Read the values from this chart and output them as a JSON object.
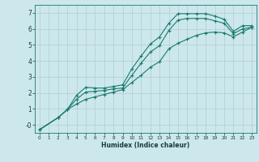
{
  "title": "",
  "xlabel": "Humidex (Indice chaleur)",
  "bg_color": "#cce8ec",
  "grid_color": "#b0cdd0",
  "line_color": "#1a7a6e",
  "xlim": [
    -0.5,
    23.5
  ],
  "ylim": [
    -0.5,
    7.5
  ],
  "xticks": [
    0,
    1,
    2,
    3,
    4,
    5,
    6,
    7,
    8,
    9,
    10,
    11,
    12,
    13,
    14,
    15,
    16,
    17,
    18,
    19,
    20,
    21,
    22,
    23
  ],
  "yticks": [
    0,
    1,
    2,
    3,
    4,
    5,
    6,
    7
  ],
  "line1_x": [
    0,
    2,
    3,
    4,
    5,
    6,
    7,
    8,
    9,
    10,
    11,
    12,
    13,
    14,
    15,
    16,
    17,
    18,
    19,
    20,
    21,
    22,
    23
  ],
  "line1_y": [
    -0.3,
    0.45,
    0.95,
    1.85,
    2.35,
    2.3,
    2.3,
    2.4,
    2.5,
    3.5,
    4.3,
    5.05,
    5.5,
    6.35,
    6.95,
    6.95,
    6.95,
    6.95,
    6.8,
    6.6,
    5.85,
    6.2,
    6.2
  ],
  "line2_x": [
    0,
    2,
    3,
    4,
    5,
    6,
    7,
    8,
    9,
    10,
    11,
    12,
    13,
    14,
    15,
    16,
    17,
    18,
    19,
    20,
    21,
    22,
    23
  ],
  "line2_y": [
    -0.3,
    0.45,
    0.95,
    1.6,
    2.05,
    2.1,
    2.15,
    2.25,
    2.3,
    3.1,
    3.85,
    4.55,
    4.95,
    5.9,
    6.55,
    6.65,
    6.65,
    6.65,
    6.5,
    6.35,
    5.7,
    6.0,
    6.1
  ],
  "line3_x": [
    0,
    2,
    3,
    4,
    5,
    6,
    7,
    8,
    9,
    10,
    11,
    12,
    13,
    14,
    15,
    16,
    17,
    18,
    19,
    20,
    21,
    22,
    23
  ],
  "line3_y": [
    -0.3,
    0.45,
    0.95,
    1.3,
    1.6,
    1.75,
    1.9,
    2.05,
    2.2,
    2.65,
    3.1,
    3.6,
    3.95,
    4.75,
    5.1,
    5.35,
    5.6,
    5.75,
    5.8,
    5.75,
    5.5,
    5.8,
    6.1
  ]
}
